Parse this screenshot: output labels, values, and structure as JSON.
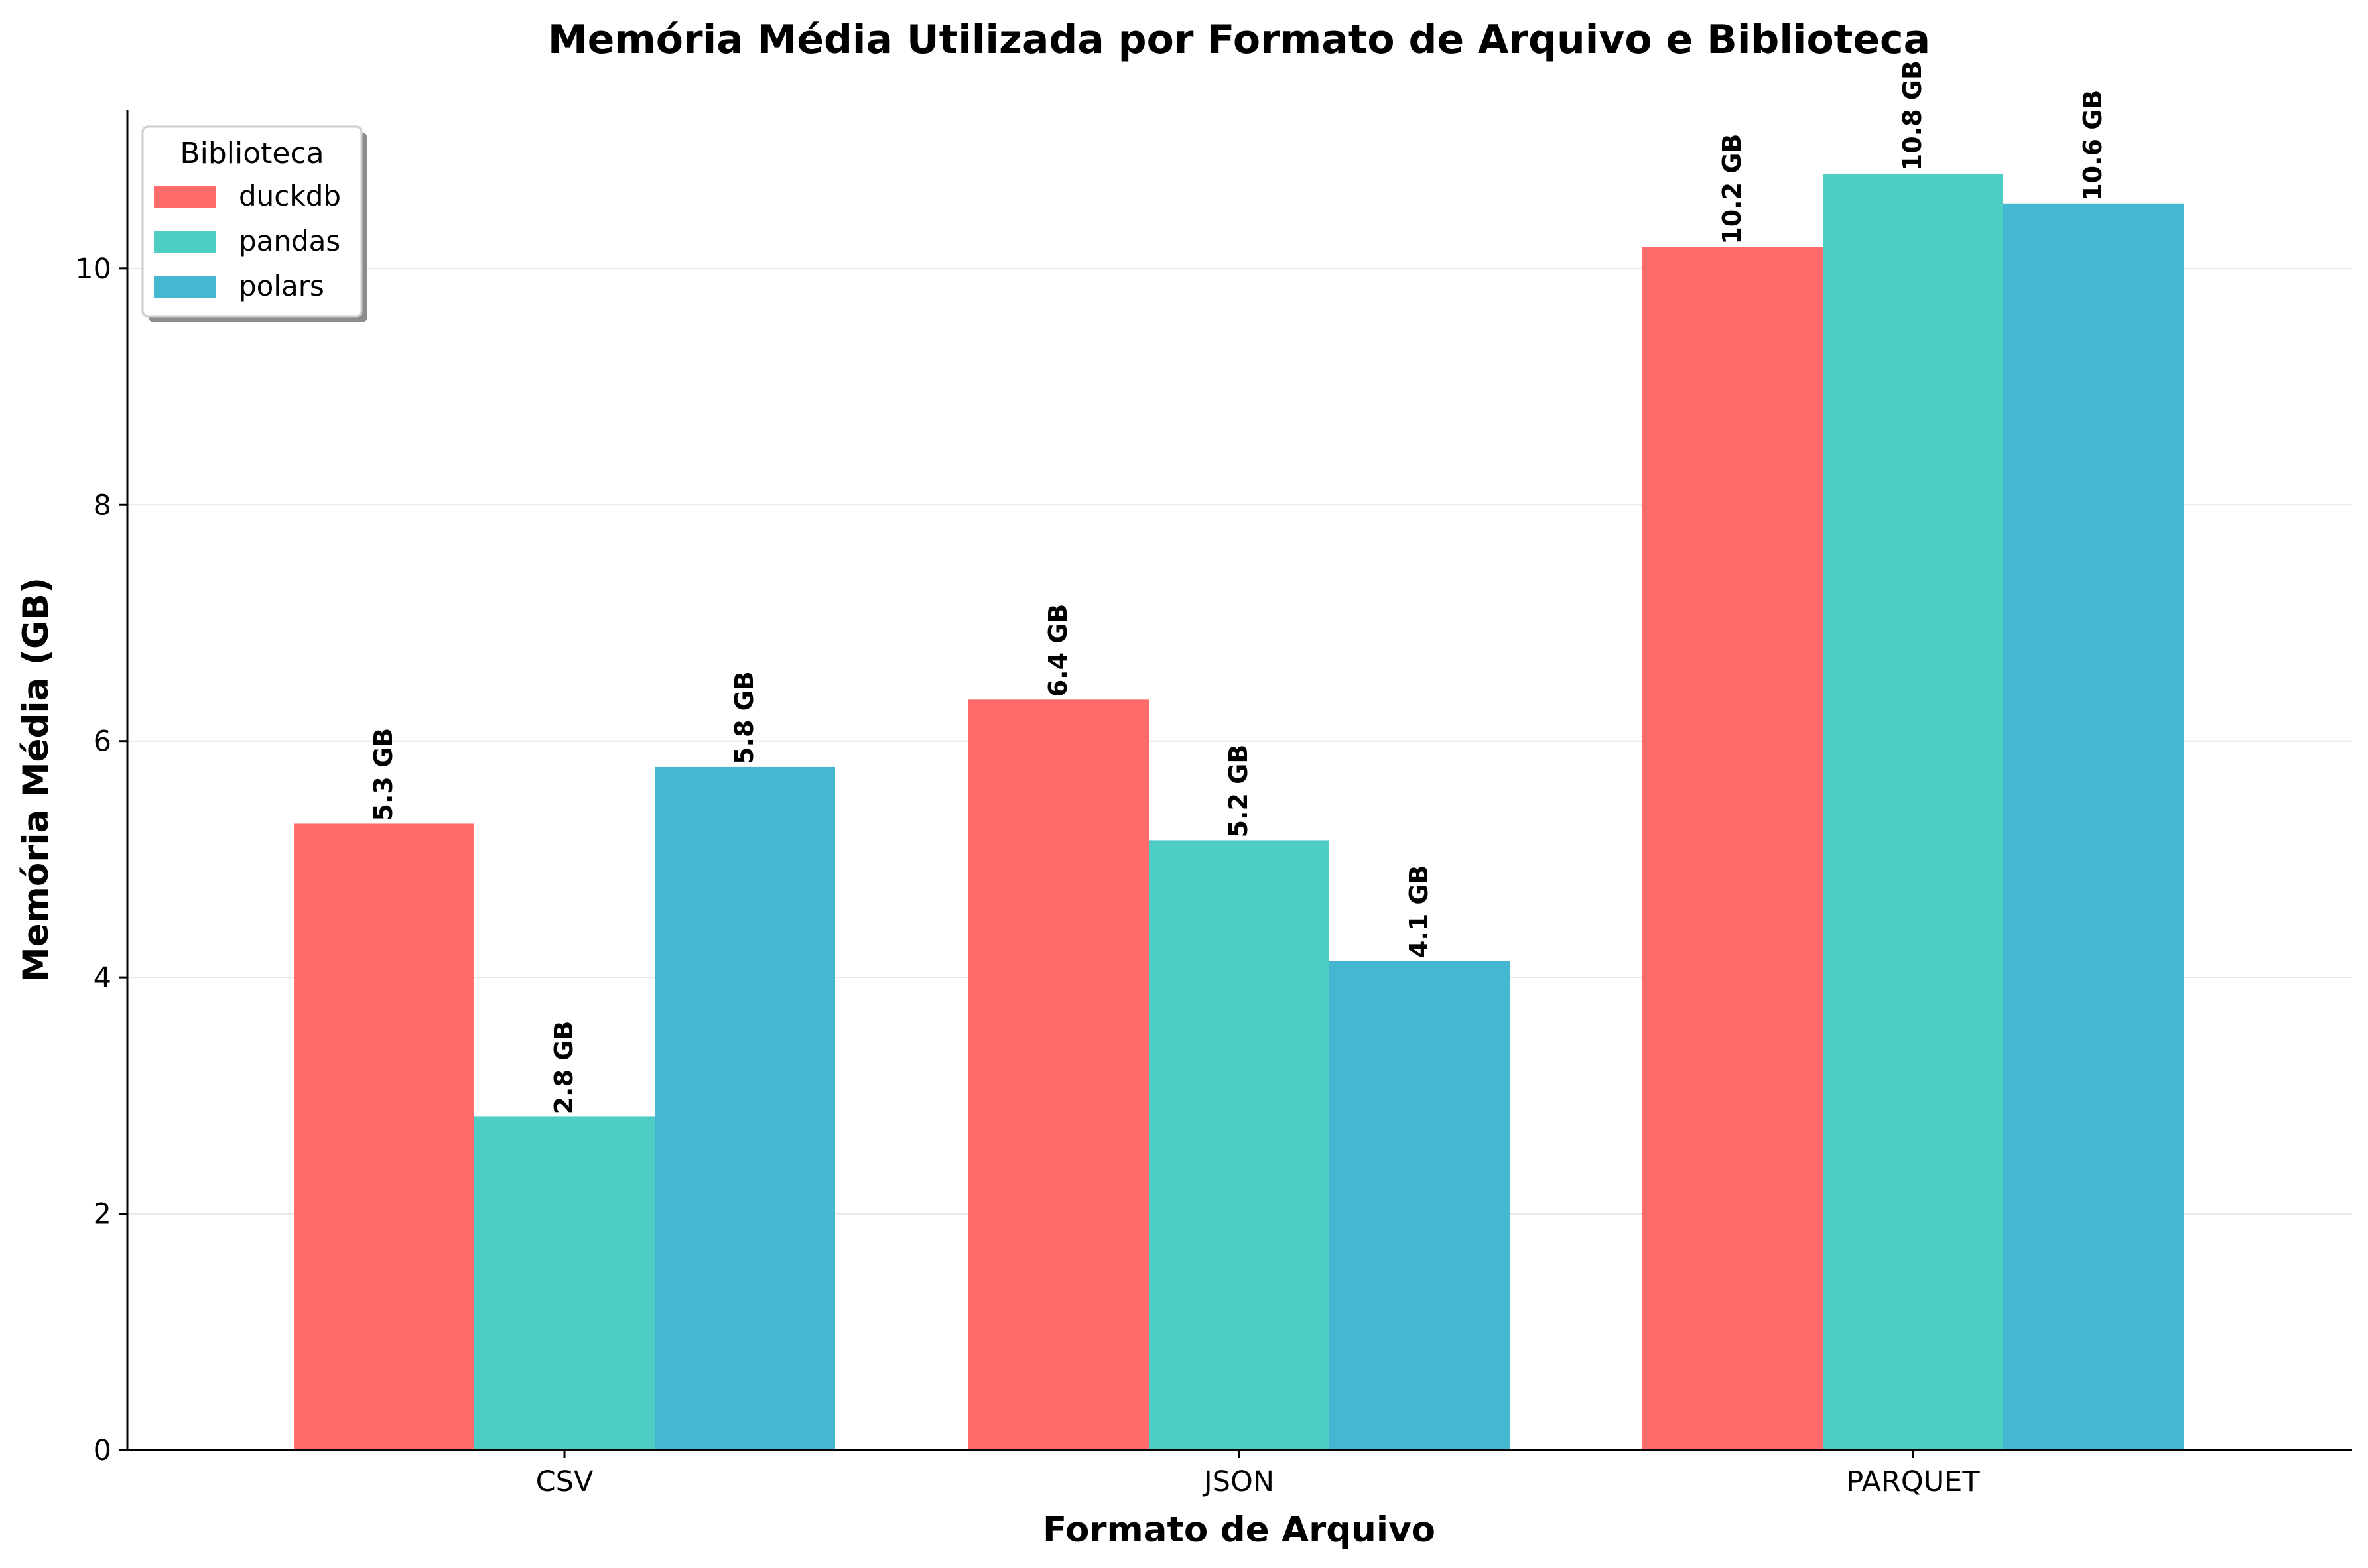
{
  "chart_data": {
    "type": "bar",
    "title": "Memória Média Utilizada por Formato de Arquivo e Biblioteca",
    "xlabel": "Formato de Arquivo",
    "ylabel": "Memória Média (GB)",
    "categories": [
      "CSV",
      "JSON",
      "PARQUET"
    ],
    "series": [
      {
        "name": "duckdb",
        "color": "#ff6b6b",
        "values": [
          5.3,
          6.35,
          10.18
        ],
        "labels": [
          "5.3 GB",
          "6.4 GB",
          "10.2 GB"
        ]
      },
      {
        "name": "pandas",
        "color": "#4ecdc4",
        "values": [
          2.82,
          5.16,
          10.8
        ],
        "labels": [
          "2.8 GB",
          "5.2 GB",
          "10.8 GB"
        ]
      },
      {
        "name": "polars",
        "color": "#45b7d1",
        "values": [
          5.78,
          4.14,
          10.55
        ],
        "labels": [
          "5.8 GB",
          "4.1 GB",
          "10.6 GB"
        ]
      }
    ],
    "ylim": [
      0,
      11.34
    ],
    "yticks": [
      0,
      2,
      4,
      6,
      8,
      10
    ],
    "grid": "y",
    "legend": {
      "title": "Biblioteca",
      "position": "top-left"
    }
  }
}
